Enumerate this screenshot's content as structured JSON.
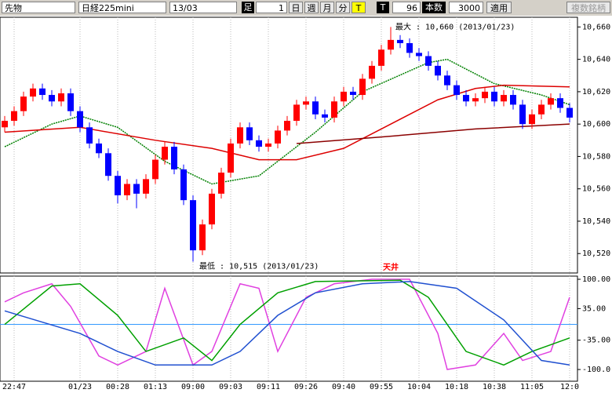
{
  "toolbar": {
    "market": "先物",
    "product": "日経225mini",
    "month": "13/03",
    "bar_label": "足",
    "bar_count": 1,
    "buttons": [
      "日",
      "週",
      "月",
      "分",
      "T"
    ],
    "t_label": "T",
    "t_value": 96,
    "count_label": "本数",
    "count_value": 3000,
    "apply": "適用",
    "multi": "複数銘柄"
  },
  "chart_data": [
    {
      "type": "candlestick",
      "up_color": "#ff0000",
      "down_color": "#0000ff",
      "x": [
        null,
        "22:47",
        null,
        null,
        null,
        null,
        null,
        null,
        "01/23",
        null,
        null,
        null,
        "00:28",
        null,
        null,
        null,
        "01:13",
        null,
        null,
        null,
        "09:00",
        null,
        null,
        null,
        "09:03",
        null,
        null,
        null,
        "09:11",
        null,
        null,
        null,
        "09:26",
        null,
        null,
        null,
        "09:40",
        null,
        null,
        null,
        "09:55",
        null,
        null,
        null,
        "10:04",
        null,
        null,
        null,
        "10:18",
        null,
        null,
        null,
        "10:38",
        null,
        null,
        null,
        "11:05",
        null,
        null,
        null,
        "12:0"
      ],
      "open": [
        10598,
        10602,
        10608,
        10617,
        10622,
        10618,
        10614,
        10619,
        10608,
        10598,
        10588,
        10582,
        10568,
        10556,
        10563,
        10557,
        10566,
        10578,
        10586,
        10572,
        10553,
        10522,
        10538,
        10557,
        10570,
        10588,
        10598,
        10590,
        10586,
        10588,
        10596,
        10602,
        10612,
        10614,
        10606,
        10604,
        10614,
        10620,
        10618,
        10628,
        10636,
        10646,
        10652,
        10650,
        10644,
        10642,
        10636,
        10630,
        10624,
        10618,
        10614,
        10616,
        10620,
        10614,
        10618,
        10612,
        10600,
        10606,
        10612,
        10616,
        10610
      ],
      "high": [
        10605,
        10611,
        10620,
        10625,
        10625,
        10621,
        10622,
        10622,
        10611,
        10601,
        10591,
        10585,
        10571,
        10566,
        10566,
        10569,
        10581,
        10589,
        10589,
        10575,
        10556,
        10541,
        10560,
        10573,
        10591,
        10601,
        10601,
        10593,
        10591,
        10599,
        10605,
        10615,
        10617,
        10617,
        10609,
        10617,
        10623,
        10623,
        10631,
        10639,
        10649,
        10660,
        10655,
        10653,
        10647,
        10645,
        10639,
        10633,
        10627,
        10621,
        10619,
        10623,
        10623,
        10621,
        10621,
        10615,
        10609,
        10615,
        10619,
        10619,
        10613
      ],
      "low": [
        10595,
        10599,
        10605,
        10614,
        10615,
        10611,
        10611,
        10605,
        10595,
        10585,
        10579,
        10565,
        10551,
        10553,
        10548,
        10554,
        10563,
        10575,
        10569,
        10550,
        10515,
        10519,
        10535,
        10554,
        10567,
        10585,
        10587,
        10583,
        10583,
        10585,
        10593,
        10599,
        10609,
        10603,
        10601,
        10601,
        10611,
        10615,
        10615,
        10625,
        10633,
        10643,
        10647,
        10641,
        10639,
        10633,
        10627,
        10621,
        10615,
        10611,
        10611,
        10613,
        10611,
        10611,
        10609,
        10597,
        10597,
        10603,
        10609,
        10607,
        10601
      ],
      "close": [
        10602,
        10608,
        10617,
        10622,
        10618,
        10614,
        10619,
        10608,
        10598,
        10588,
        10582,
        10568,
        10556,
        10563,
        10557,
        10566,
        10578,
        10586,
        10572,
        10553,
        10522,
        10538,
        10557,
        10570,
        10588,
        10598,
        10590,
        10586,
        10588,
        10596,
        10602,
        10612,
        10614,
        10606,
        10604,
        10614,
        10620,
        10618,
        10628,
        10636,
        10646,
        10652,
        10650,
        10644,
        10642,
        10636,
        10630,
        10624,
        10618,
        10614,
        10616,
        10620,
        10614,
        10618,
        10612,
        10600,
        10606,
        10612,
        10616,
        10610,
        10604
      ],
      "overlays": [
        {
          "color": "#008000",
          "dashed": true,
          "x": [
            0,
            5,
            8,
            12,
            17,
            22,
            27,
            33,
            38,
            45,
            47,
            52,
            57,
            60
          ],
          "values": [
            10586,
            10600,
            10605,
            10598,
            10577,
            10563,
            10568,
            10595,
            10620,
            10638,
            10640,
            10625,
            10618,
            10612
          ]
        },
        {
          "color": "#dd0000",
          "x": [
            0,
            8,
            16,
            22,
            27,
            31,
            36,
            41,
            46,
            50,
            53,
            60
          ],
          "values": [
            10595,
            10598,
            10590,
            10585,
            10578,
            10578,
            10585,
            10600,
            10615,
            10622,
            10624,
            10623
          ]
        },
        {
          "color": "#8b0000",
          "x": [
            31,
            40,
            50,
            60
          ],
          "values": [
            10588,
            10592,
            10597,
            10600
          ]
        }
      ],
      "ylim": [
        10508,
        10666
      ],
      "yticks": [
        {
          "value": 10520,
          "label": "10,520"
        },
        {
          "value": 10540,
          "label": "10,540"
        },
        {
          "value": 10560,
          "label": "10,560"
        },
        {
          "value": 10580,
          "label": "10,580"
        },
        {
          "value": 10600,
          "label": "10,600"
        },
        {
          "value": 10620,
          "label": "10,620"
        },
        {
          "value": 10640,
          "label": "10,640"
        },
        {
          "value": 10660,
          "label": "10,660"
        }
      ],
      "annotations": [
        "最大 : 10,660 (2013/01/23)",
        "最低 : 10,515 (2013/01/23)",
        "天井"
      ]
    },
    {
      "type": "line",
      "ylim": [
        -126,
        107
      ],
      "reference_line": 0,
      "reference_color": "#3399ff",
      "yticks": [
        {
          "value": -100,
          "label": "-100.0"
        },
        {
          "value": -35,
          "label": "-35.00"
        },
        {
          "value": 35,
          "label": "35.00"
        },
        {
          "value": 100,
          "label": "100.00"
        }
      ],
      "series": [
        {
          "color": "#e040e0",
          "x": [
            0,
            2,
            5,
            7,
            10,
            12,
            15,
            17,
            20,
            22,
            25,
            27,
            29,
            32,
            35,
            39,
            43,
            46,
            47,
            50,
            53,
            55,
            58,
            60
          ],
          "values": [
            50,
            70,
            90,
            40,
            -70,
            -90,
            -60,
            80,
            -90,
            -60,
            90,
            80,
            -60,
            60,
            90,
            100,
            100,
            -20,
            -100,
            -90,
            -20,
            -80,
            -60,
            60
          ]
        },
        {
          "color": "#00a000",
          "x": [
            0,
            5,
            8,
            12,
            15,
            19,
            22,
            25,
            29,
            33,
            42,
            45,
            49,
            53,
            56,
            60
          ],
          "values": [
            0,
            85,
            90,
            20,
            -60,
            -30,
            -80,
            0,
            70,
            95,
            98,
            60,
            -60,
            -90,
            -60,
            -30
          ]
        },
        {
          "color": "#2050d0",
          "x": [
            0,
            8,
            12,
            16,
            22,
            25,
            29,
            33,
            38,
            43,
            48,
            53,
            57,
            60
          ],
          "values": [
            30,
            -20,
            -60,
            -90,
            -90,
            -60,
            20,
            70,
            90,
            95,
            80,
            10,
            -80,
            -90
          ]
        }
      ]
    }
  ]
}
